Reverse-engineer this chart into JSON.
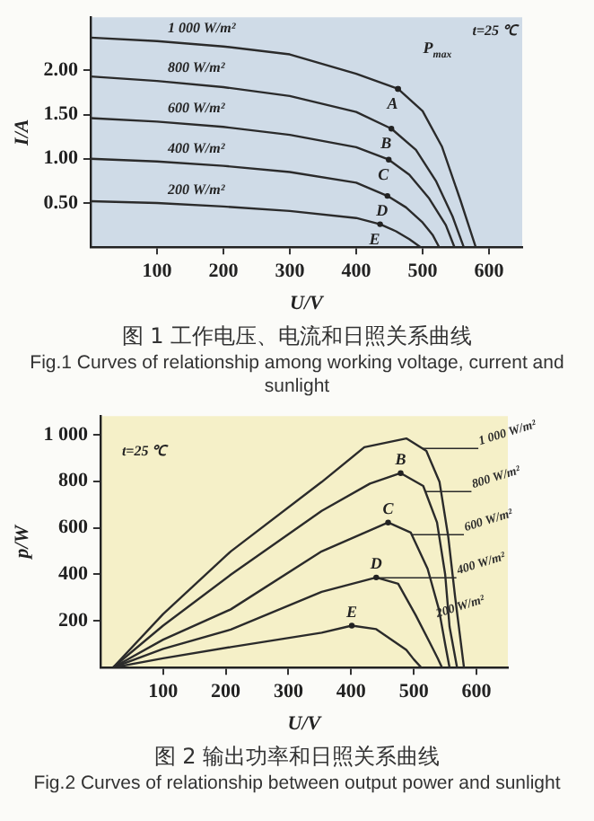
{
  "chart_data": [
    {
      "type": "line",
      "title": "图 1  工作电压、电流和日照关系曲线",
      "subtitle": "Fig.1  Curves of relationship among working voltage, current and sunlight",
      "xlabel": "U/V",
      "ylabel": "I/A",
      "xlim": [
        0,
        650
      ],
      "ylim": [
        0,
        2.6
      ],
      "xticks": [
        100,
        200,
        300,
        400,
        500,
        600
      ],
      "yticks": [
        {
          "value": 0.5,
          "label": "0.50"
        },
        {
          "value": 1,
          "label": "1.00"
        },
        {
          "value": 1.5,
          "label": "1.50"
        },
        {
          "value": 2,
          "label": "2.00"
        }
      ],
      "grid": false,
      "legend": false,
      "series": [
        {
          "name": "1 000 W/m²",
          "color": "#2b2b2b",
          "x": [
            0,
            100,
            200,
            300,
            400,
            463,
            500,
            529,
            557,
            580
          ],
          "values": [
            2.37,
            2.33,
            2.27,
            2.18,
            1.96,
            1.79,
            1.54,
            1.14,
            0.53,
            0
          ]
        },
        {
          "name": "800 W/m²",
          "color": "#2b2b2b",
          "x": [
            0,
            100,
            200,
            300,
            400,
            453,
            490,
            520,
            545,
            562
          ],
          "values": [
            1.93,
            1.88,
            1.81,
            1.71,
            1.53,
            1.34,
            1.1,
            0.75,
            0.35,
            0
          ]
        },
        {
          "name": "600 W/m²",
          "color": "#2b2b2b",
          "x": [
            0,
            100,
            200,
            300,
            400,
            449,
            480,
            510,
            535,
            548
          ],
          "values": [
            1.46,
            1.42,
            1.36,
            1.27,
            1.13,
            0.99,
            0.82,
            0.55,
            0.25,
            0
          ]
        },
        {
          "name": "400 W/m²",
          "color": "#2b2b2b",
          "x": [
            0,
            100,
            200,
            300,
            400,
            447,
            475,
            500,
            515,
            525
          ],
          "values": [
            1.0,
            0.97,
            0.92,
            0.85,
            0.73,
            0.58,
            0.45,
            0.28,
            0.14,
            0
          ]
        },
        {
          "name": "200 W/m²",
          "color": "#2b2b2b",
          "x": [
            0,
            100,
            200,
            300,
            400,
            436,
            460,
            480,
            497
          ],
          "values": [
            0.52,
            0.5,
            0.46,
            0.41,
            0.33,
            0.26,
            0.18,
            0.09,
            0
          ]
        }
      ],
      "annotations": [
        "t=25 ℃",
        {
          "text": "P$_{max}$",
          "x": 463,
          "y": 1.79
        },
        {
          "text": "A",
          "x": 463,
          "y": 1.79
        },
        {
          "text": "B",
          "x": 453,
          "y": 1.34
        },
        {
          "text": "C",
          "x": 449,
          "y": 0.99
        },
        {
          "text": "D",
          "x": 447,
          "y": 0.58
        },
        {
          "text": "E",
          "x": 436,
          "y": 0.26
        }
      ]
    },
    {
      "type": "line",
      "title": "图 2  输出功率和日照关系曲线",
      "subtitle": "Fig.2  Curves of relationship between output power and sunlight",
      "xlabel": "U/V",
      "ylabel": "p/W",
      "xlim": [
        0,
        650
      ],
      "ylim": [
        0,
        1080
      ],
      "xticks": [
        100,
        200,
        300,
        400,
        500,
        600
      ],
      "yticks": [
        200,
        400,
        600,
        800,
        {
          "value": 1000,
          "label": "1 000"
        }
      ],
      "grid": false,
      "legend": false,
      "series": [
        {
          "name": "1 000 W/m²",
          "color": "#2b2b2b",
          "x": [
            20,
            100,
            208,
            353,
            421,
            488,
            520,
            541,
            555,
            566,
            580
          ],
          "values": [
            0,
            230,
            499,
            797,
            946,
            984,
            930,
            797,
            560,
            300,
            0
          ]
        },
        {
          "name": "800 W/m²",
          "color": "#2b2b2b",
          "x": [
            20,
            100,
            208,
            353,
            430,
            479,
            515,
            537,
            550,
            557,
            569
          ],
          "values": [
            0,
            180,
            399,
            673,
            790,
            835,
            780,
            623,
            400,
            175,
            0
          ]
        },
        {
          "name": "600 W/m²",
          "color": "#2b2b2b",
          "x": [
            20,
            100,
            208,
            353,
            459,
            495,
            522,
            540,
            550,
            557
          ],
          "values": [
            0,
            120,
            250,
            499,
            623,
            580,
            424,
            250,
            100,
            0
          ]
        },
        {
          "name": "400 W/m²",
          "color": "#2b2b2b",
          "x": [
            20,
            100,
            208,
            353,
            440,
            475,
            503,
            525,
            538,
            545
          ],
          "values": [
            0,
            80,
            163,
            325,
            387,
            360,
            225,
            110,
            40,
            0
          ]
        },
        {
          "name": "200 W/m²",
          "color": "#2b2b2b",
          "x": [
            20,
            100,
            208,
            353,
            401,
            440,
            488,
            500,
            512
          ],
          "values": [
            0,
            40,
            88,
            150,
            180,
            165,
            76,
            35,
            0
          ]
        }
      ],
      "annotations": [
        "t=25 ℃",
        {
          "text": "B",
          "x": 479,
          "y": 835
        },
        {
          "text": "C",
          "x": 459,
          "y": 623
        },
        {
          "text": "D",
          "x": 440,
          "y": 387
        },
        {
          "text": "E",
          "x": 401,
          "y": 180
        }
      ]
    }
  ]
}
